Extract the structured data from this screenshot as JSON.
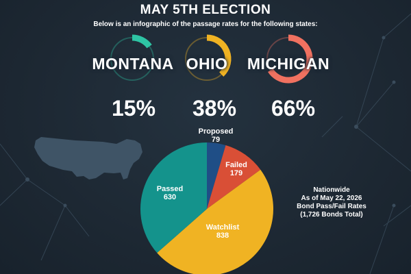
{
  "header": {
    "title": "MAY 5TH ELECTION",
    "subtitle": "Below is an infographic of the passage rates for the following states:"
  },
  "states": [
    {
      "name": "MONTANA",
      "rate_percent": 15,
      "rate_label": "15%",
      "color": "#2ec4a4"
    },
    {
      "name": "OHIO",
      "rate_percent": 38,
      "rate_label": "38%",
      "color": "#f0b323"
    },
    {
      "name": "MICHIGAN",
      "rate_percent": 66,
      "rate_label": "66%",
      "color": "#f07160"
    }
  ],
  "note": {
    "line1": "Nationwide",
    "line2": "As of May 22, 2026",
    "line3": "Bond Pass/Fail Rates",
    "line4": "(1,726 Bonds Total)"
  },
  "colors": {
    "background": "#1e2a36",
    "proposed": "#1f4e86",
    "failed": "#d94f36",
    "watchlist": "#f0b323",
    "passed": "#14938c",
    "map": "#3f5466"
  },
  "chart_data": {
    "type": "pie",
    "slices": [
      {
        "label": "Proposed",
        "value": 79,
        "value_label": "79",
        "color": "#1f4e86"
      },
      {
        "label": "Failed",
        "value": 179,
        "value_label": "179",
        "color": "#d94f36"
      },
      {
        "label": "Watchlist",
        "value": 838,
        "value_label": "838",
        "color": "#f0b323"
      },
      {
        "label": "Passed",
        "value": 630,
        "value_label": "630",
        "color": "#14938c"
      }
    ]
  }
}
